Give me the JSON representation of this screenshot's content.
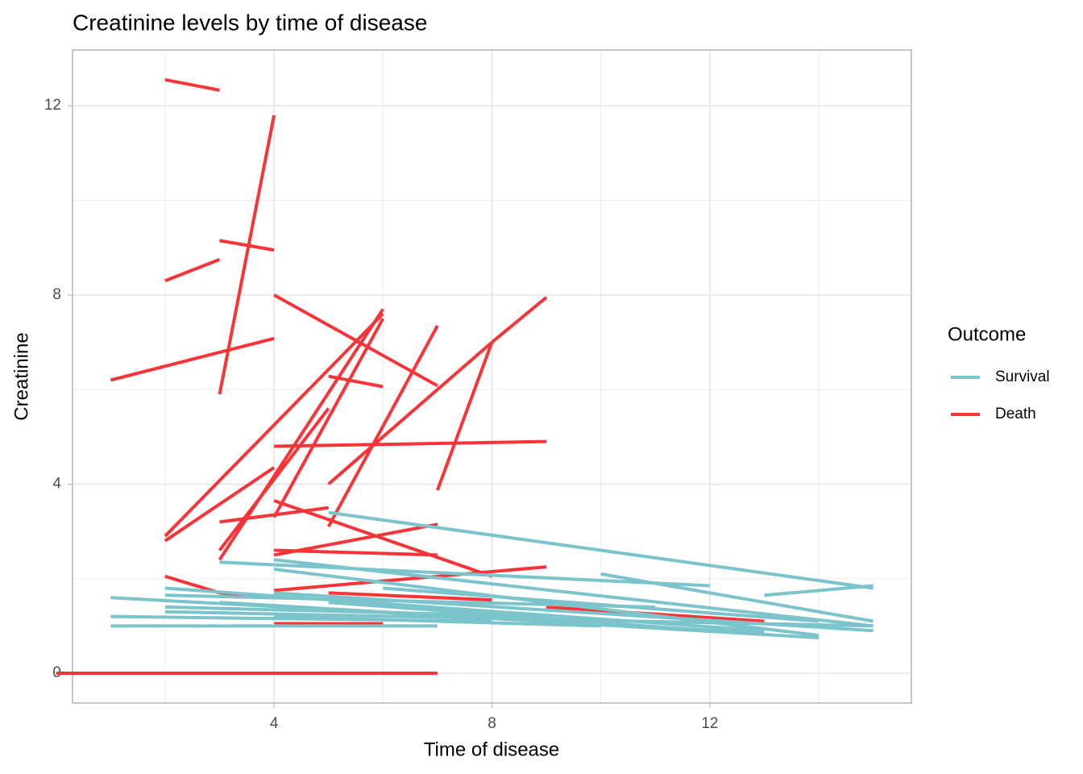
{
  "chart_data": {
    "type": "segments",
    "title": "Creatinine levels by time of disease",
    "x_label": "Time of disease",
    "y_label": "Creatinine",
    "legend_title": "Outcome",
    "legend_position": "right",
    "grid": true,
    "xlim": [
      0.3,
      15.7
    ],
    "ylim": [
      -0.63,
      13.18
    ],
    "xticks": [
      4,
      8,
      12
    ],
    "yticks": [
      0,
      4,
      8,
      12
    ],
    "x_minor_breaks": [
      2,
      6,
      10,
      14
    ],
    "y_minor_breaks": [
      2,
      6,
      10
    ],
    "series": [
      {
        "name": "Death",
        "color": "#f83438",
        "segments": [
          {
            "x": [
              2,
              3
            ],
            "y": [
              12.55,
              12.33
            ]
          },
          {
            "x": [
              3,
              4
            ],
            "y": [
              5.9,
              11.8
            ]
          },
          {
            "x": [
              2,
              3
            ],
            "y": [
              8.3,
              8.75
            ]
          },
          {
            "x": [
              3,
              4
            ],
            "y": [
              9.15,
              8.95
            ]
          },
          {
            "x": [
              1,
              4
            ],
            "y": [
              6.2,
              7.08
            ]
          },
          {
            "x": [
              4,
              7
            ],
            "y": [
              8.0,
              6.08
            ]
          },
          {
            "x": [
              5,
              6
            ],
            "y": [
              6.28,
              6.06
            ]
          },
          {
            "x": [
              2,
              6
            ],
            "y": [
              2.9,
              7.6
            ]
          },
          {
            "x": [
              2,
              4
            ],
            "y": [
              2.8,
              4.35
            ]
          },
          {
            "x": [
              3,
              6
            ],
            "y": [
              2.4,
              7.7
            ]
          },
          {
            "x": [
              3,
              5
            ],
            "y": [
              2.6,
              5.6
            ]
          },
          {
            "x": [
              4,
              6
            ],
            "y": [
              3.3,
              7.5
            ]
          },
          {
            "x": [
              4,
              9
            ],
            "y": [
              4.8,
              4.9
            ]
          },
          {
            "x": [
              5,
              8
            ],
            "y": [
              4.0,
              7.0
            ]
          },
          {
            "x": [
              8,
              9
            ],
            "y": [
              7.0,
              7.95
            ]
          },
          {
            "x": [
              7,
              8
            ],
            "y": [
              3.87,
              7.0
            ]
          },
          {
            "x": [
              5,
              7
            ],
            "y": [
              3.1,
              7.35
            ]
          },
          {
            "x": [
              3,
              5
            ],
            "y": [
              3.2,
              3.5
            ]
          },
          {
            "x": [
              4,
              8
            ],
            "y": [
              3.65,
              2.05
            ]
          },
          {
            "x": [
              4,
              7
            ],
            "y": [
              2.6,
              2.5
            ]
          },
          {
            "x": [
              4,
              7
            ],
            "y": [
              2.5,
              3.15
            ]
          },
          {
            "x": [
              2,
              3
            ],
            "y": [
              2.05,
              1.7
            ]
          },
          {
            "x": [
              3,
              4
            ],
            "y": [
              1.7,
              1.6
            ]
          },
          {
            "x": [
              4,
              9
            ],
            "y": [
              1.75,
              2.25
            ]
          },
          {
            "x": [
              5,
              8
            ],
            "y": [
              1.7,
              1.55
            ]
          },
          {
            "x": [
              4,
              6
            ],
            "y": [
              1.05,
              1.05
            ]
          },
          {
            "x": [
              9,
              13
            ],
            "y": [
              1.4,
              1.1
            ]
          },
          {
            "x": [
              5,
              0
            ],
            "y": [
              0,
              0
            ]
          },
          {
            "x": [
              5,
              7
            ],
            "y": [
              0,
              0
            ]
          }
        ]
      },
      {
        "name": "Survival",
        "color": "#7bc4cc",
        "segments": [
          {
            "x": [
              5,
              15
            ],
            "y": [
              3.4,
              1.8
            ]
          },
          {
            "x": [
              3,
              12
            ],
            "y": [
              2.35,
              1.85
            ]
          },
          {
            "x": [
              10,
              15
            ],
            "y": [
              2.1,
              1.1
            ]
          },
          {
            "x": [
              13,
              15
            ],
            "y": [
              1.65,
              1.85
            ]
          },
          {
            "x": [
              4,
              15
            ],
            "y": [
              2.4,
              1.0
            ]
          },
          {
            "x": [
              4,
              14
            ],
            "y": [
              2.2,
              0.8
            ]
          },
          {
            "x": [
              2,
              13
            ],
            "y": [
              1.8,
              0.9
            ]
          },
          {
            "x": [
              2,
              11
            ],
            "y": [
              1.65,
              1.4
            ]
          },
          {
            "x": [
              1,
              13
            ],
            "y": [
              1.6,
              0.85
            ]
          },
          {
            "x": [
              1,
              8
            ],
            "y": [
              1.2,
              1.1
            ]
          },
          {
            "x": [
              1,
              7
            ],
            "y": [
              1.0,
              1.0
            ]
          },
          {
            "x": [
              2,
              15
            ],
            "y": [
              1.3,
              1.0
            ]
          },
          {
            "x": [
              2,
              9
            ],
            "y": [
              1.4,
              1.2
            ]
          },
          {
            "x": [
              3,
              14
            ],
            "y": [
              1.5,
              0.75
            ]
          },
          {
            "x": [
              4,
              15
            ],
            "y": [
              1.7,
              0.9
            ]
          },
          {
            "x": [
              5,
              12
            ],
            "y": [
              1.5,
              0.9
            ]
          },
          {
            "x": [
              6,
              14
            ],
            "y": [
              1.8,
              1.1
            ]
          },
          {
            "x": [
              4,
              10
            ],
            "y": [
              1.2,
              1.0
            ]
          }
        ]
      }
    ],
    "legend_order": [
      1,
      0
    ]
  }
}
